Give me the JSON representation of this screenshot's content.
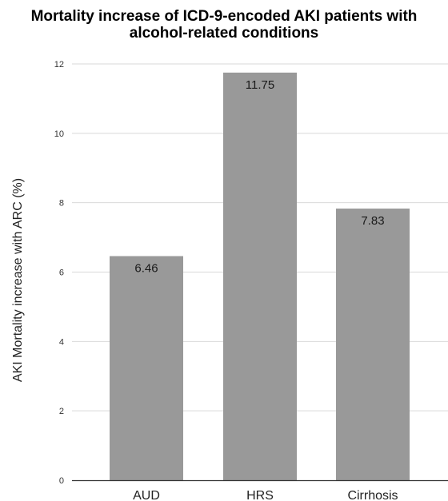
{
  "chart_data": {
    "type": "bar",
    "title_lines": [
      "Mortality increase of ICD-9-encoded AKI patients with",
      "alcohol-related conditions"
    ],
    "xlabel": "",
    "ylabel": "AKI Mortality increase with ARC (%)",
    "categories": [
      "AUD",
      "HRS",
      "Cirrhosis"
    ],
    "values": [
      6.46,
      11.75,
      7.83
    ],
    "data_labels": [
      "6.46",
      "11.75",
      "7.83"
    ],
    "yticks": [
      0,
      2,
      4,
      6,
      8,
      10,
      12
    ],
    "ylim": [
      0,
      12
    ],
    "grid": true,
    "legend": "none",
    "bar_color": "#999999",
    "grid_color": "#d9d9d9",
    "axis_color": "#333333"
  }
}
